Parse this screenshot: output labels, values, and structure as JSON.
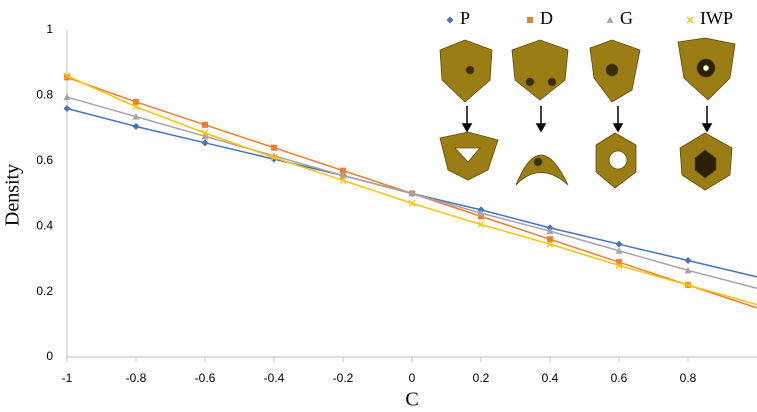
{
  "chart_data": {
    "type": "line",
    "x_label": "C",
    "y_label": "Density",
    "x": [
      -1,
      -0.8,
      -0.6,
      -0.4,
      -0.2,
      0,
      0.2,
      0.4,
      0.6,
      0.8,
      1
    ],
    "series": [
      {
        "name": "P",
        "color": "#4472c4",
        "marker": "diamond",
        "values": [
          0.76,
          0.705,
          0.655,
          0.605,
          0.555,
          0.5,
          0.45,
          0.395,
          0.345,
          0.295,
          0.245
        ]
      },
      {
        "name": "D",
        "color": "#ed7d31",
        "marker": "square",
        "values": [
          0.855,
          0.78,
          0.71,
          0.64,
          0.57,
          0.5,
          0.43,
          0.36,
          0.29,
          0.22,
          0.15
        ]
      },
      {
        "name": "G",
        "color": "#a5a5a5",
        "marker": "triangle",
        "values": [
          0.795,
          0.735,
          0.675,
          0.615,
          0.555,
          0.5,
          0.44,
          0.385,
          0.325,
          0.265,
          0.21
        ]
      },
      {
        "name": "IWP",
        "color": "#ffc000",
        "marker": "x",
        "values": [
          0.86,
          0.765,
          0.685,
          0.61,
          0.54,
          0.47,
          0.405,
          0.345,
          0.28,
          0.22,
          0.16
        ]
      }
    ],
    "xlim": [
      -1,
      1
    ],
    "xticks": [
      -1,
      -0.8,
      -0.6,
      -0.4,
      -0.2,
      0,
      0.2,
      0.4,
      0.6,
      0.8
    ],
    "ylim": [
      0,
      1
    ],
    "yticks": [
      0,
      0.2,
      0.4,
      0.6,
      0.8,
      1
    ],
    "grid": false,
    "legend": "top-right"
  }
}
